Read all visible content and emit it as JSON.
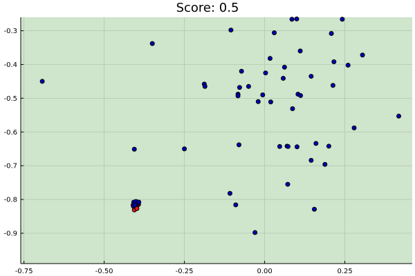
{
  "chart_data": {
    "type": "scatter",
    "title": "Score: 0.5",
    "xlabel": "",
    "ylabel": "",
    "xlim": [
      -0.76,
      0.46
    ],
    "ylim": [
      -0.99,
      -0.26
    ],
    "xticks": [
      -0.75,
      -0.5,
      -0.25,
      0.0,
      0.25
    ],
    "xtick_labels": [
      "-0.75",
      "-0.50",
      "-0.25",
      "0.00",
      "0.25"
    ],
    "yticks": [
      -0.3,
      -0.4,
      -0.5,
      -0.6,
      -0.7,
      -0.8,
      -0.9
    ],
    "ytick_labels": [
      "-0.3",
      "-0.4",
      "-0.5",
      "-0.6",
      "-0.7",
      "-0.8",
      "-0.9"
    ],
    "grid": true,
    "legend": "none",
    "colors": {
      "background": "#cfe5cc",
      "blue_points": "#0000b4",
      "red_points": "#e01b1b",
      "point_outline": "#000000",
      "grid": "#b3c7b0"
    },
    "series": [
      {
        "color": "#0000b4",
        "points": [
          [
            -0.693,
            -0.45
          ],
          [
            -0.35,
            -0.338
          ],
          [
            -0.105,
            -0.298
          ],
          [
            -0.188,
            -0.458
          ],
          [
            -0.186,
            -0.465
          ],
          [
            -0.072,
            -0.42
          ],
          [
            -0.05,
            -0.465
          ],
          [
            -0.078,
            -0.468
          ],
          [
            -0.083,
            -0.488
          ],
          [
            -0.083,
            -0.493
          ],
          [
            -0.02,
            -0.51
          ],
          [
            -0.006,
            -0.49
          ],
          [
            0.003,
            -0.425
          ],
          [
            0.017,
            -0.382
          ],
          [
            0.03,
            -0.306
          ],
          [
            0.019,
            -0.511
          ],
          [
            0.062,
            -0.408
          ],
          [
            0.058,
            -0.441
          ],
          [
            0.085,
            -0.266
          ],
          [
            0.1,
            -0.265
          ],
          [
            0.111,
            -0.36
          ],
          [
            0.087,
            -0.531
          ],
          [
            0.104,
            -0.488
          ],
          [
            0.112,
            -0.492
          ],
          [
            0.145,
            -0.435
          ],
          [
            0.208,
            -0.308
          ],
          [
            0.242,
            -0.266
          ],
          [
            0.216,
            -0.392
          ],
          [
            0.213,
            -0.462
          ],
          [
            0.26,
            -0.402
          ],
          [
            0.305,
            -0.372
          ],
          [
            0.279,
            -0.588
          ],
          [
            0.418,
            -0.553
          ],
          [
            -0.406,
            -0.651
          ],
          [
            -0.25,
            -0.65
          ],
          [
            -0.08,
            -0.638
          ],
          [
            0.047,
            -0.643
          ],
          [
            0.07,
            -0.642
          ],
          [
            0.073,
            -0.643
          ],
          [
            0.101,
            -0.644
          ],
          [
            0.16,
            -0.634
          ],
          [
            0.2,
            -0.642
          ],
          [
            0.145,
            -0.684
          ],
          [
            0.188,
            -0.696
          ],
          [
            0.072,
            -0.755
          ],
          [
            -0.108,
            -0.782
          ],
          [
            -0.09,
            -0.816
          ],
          [
            -0.03,
            -0.898
          ],
          [
            0.155,
            -0.829
          ]
        ]
      },
      {
        "color": "#e01b1b",
        "points": [
          [
            -0.402,
            -0.812
          ],
          [
            -0.399,
            -0.818
          ],
          [
            -0.404,
            -0.825
          ],
          [
            -0.406,
            -0.831
          ],
          [
            -0.396,
            -0.808
          ],
          [
            -0.41,
            -0.817
          ],
          [
            -0.4,
            -0.822
          ],
          [
            -0.393,
            -0.815
          ],
          [
            -0.405,
            -0.808
          ],
          [
            -0.398,
            -0.827
          ]
        ]
      },
      {
        "color": "#0000b4",
        "points": [
          [
            -0.408,
            -0.808
          ],
          [
            -0.401,
            -0.806
          ],
          [
            -0.395,
            -0.812
          ],
          [
            -0.409,
            -0.82
          ],
          [
            -0.392,
            -0.808
          ],
          [
            -0.404,
            -0.816
          ]
        ]
      }
    ]
  }
}
